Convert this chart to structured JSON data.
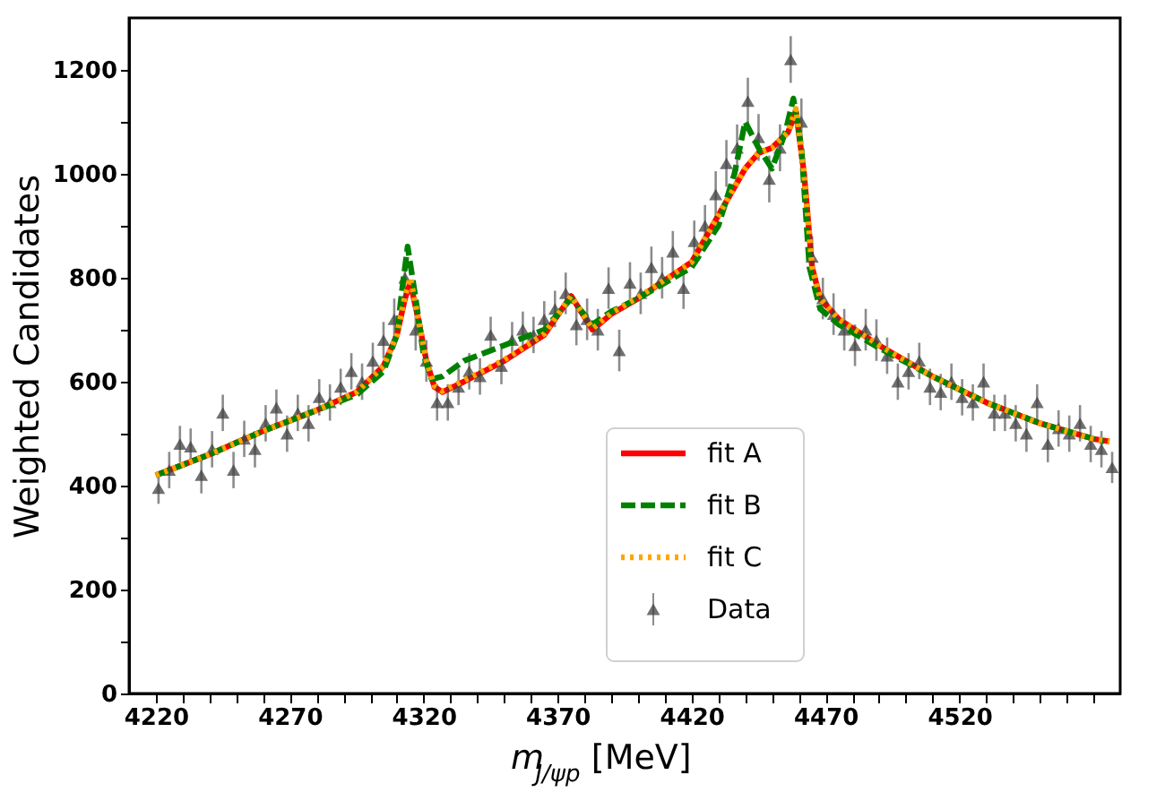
{
  "chart_data": {
    "type": "scatter",
    "xlabel": "m$_{J/ψp}$ [MeV]",
    "ylabel": "Weighted Candidates",
    "xlim": [
      4210,
      4580
    ],
    "ylim": [
      0,
      1300
    ],
    "xticks": [
      4220,
      {
        "value": 4230,
        "label": null
      },
      {
        "value": 4240,
        "label": null
      },
      {
        "value": 4250,
        "label": null
      },
      {
        "value": 4260,
        "label": null
      },
      4270,
      {
        "value": 4280,
        "label": null
      },
      {
        "value": 4290,
        "label": null
      },
      {
        "value": 4300,
        "label": null
      },
      {
        "value": 4310,
        "label": null
      },
      4320,
      {
        "value": 4330,
        "label": null
      },
      {
        "value": 4340,
        "label": null
      },
      {
        "value": 4350,
        "label": null
      },
      {
        "value": 4360,
        "label": null
      },
      4370,
      {
        "value": 4380,
        "label": null
      },
      {
        "value": 4390,
        "label": null
      },
      {
        "value": 4400,
        "label": null
      },
      {
        "value": 4410,
        "label": null
      },
      4420,
      {
        "value": 4430,
        "label": null
      },
      {
        "value": 4440,
        "label": null
      },
      {
        "value": 4450,
        "label": null
      },
      {
        "value": 4460,
        "label": null
      },
      4470,
      {
        "value": 4480,
        "label": null
      },
      {
        "value": 4490,
        "label": null
      },
      {
        "value": 4500,
        "label": null
      },
      {
        "value": 4510,
        "label": null
      },
      4520,
      {
        "value": 4530,
        "label": null
      },
      {
        "value": 4540,
        "label": null
      },
      {
        "value": 4550,
        "label": null
      },
      {
        "value": 4560,
        "label": null
      },
      {
        "value": 4570,
        "label": null
      }
    ],
    "yticks": [
      0,
      {
        "value": 100,
        "label": null
      },
      200,
      {
        "value": 300,
        "label": null
      },
      400,
      {
        "value": 500,
        "label": null
      },
      600,
      {
        "value": 700,
        "label": null
      },
      800,
      {
        "value": 900,
        "label": null
      },
      1000,
      {
        "value": 1100,
        "label": null
      },
      1200
    ],
    "grid": false,
    "legend": "bottom",
    "series": [
      {
        "name": "fit A",
        "type": "line",
        "color": "#ff0000",
        "line_style": "solid",
        "marker": "none",
        "x": [
          4220,
          4240,
          4260,
          4280,
          4295,
          4305,
          4310,
          4313,
          4315,
          4318,
          4321,
          4324,
          4327,
          4335,
          4350,
          4365,
          4375,
          4383,
          4390,
          4400,
          4420,
          4430,
          4440,
          4445,
          4450,
          4456,
          4459,
          4462,
          4465,
          4468,
          4475,
          4490,
          4510,
          4530,
          4550,
          4570,
          4576
        ],
        "values": [
          420,
          460,
          505,
          545,
          580,
          630,
          690,
          760,
          790,
          720,
          640,
          590,
          580,
          600,
          640,
          690,
          765,
          700,
          730,
          760,
          830,
          920,
          1010,
          1040,
          1050,
          1080,
          1120,
          1000,
          820,
          760,
          720,
          670,
          610,
          560,
          520,
          490,
          485
        ]
      },
      {
        "name": "fit B",
        "type": "line",
        "color": "#008000",
        "line_style": "dashed",
        "marker": "none",
        "x": [
          4220,
          4240,
          4260,
          4280,
          4295,
          4305,
          4310,
          4312,
          4314,
          4317,
          4320,
          4323,
          4327,
          4335,
          4350,
          4365,
          4375,
          4383,
          4390,
          4400,
          4420,
          4430,
          4436,
          4440,
          4445,
          4450,
          4455,
          4458,
          4461,
          4464,
          4468,
          4475,
          4490,
          4510,
          4530,
          4550,
          4570,
          4574
        ],
        "values": [
          420,
          460,
          505,
          545,
          575,
          620,
          690,
          780,
          860,
          760,
          650,
          605,
          610,
          640,
          670,
          700,
          760,
          710,
          735,
          760,
          820,
          900,
          1000,
          1100,
          1050,
          1010,
          1080,
          1145,
          1050,
          820,
          740,
          710,
          665,
          610,
          560,
          520,
          490,
          485
        ]
      },
      {
        "name": "fit C",
        "type": "line",
        "color": "#ffa500",
        "line_style": "dotted",
        "marker": "none",
        "x": [
          4220,
          4240,
          4260,
          4280,
          4295,
          4305,
          4310,
          4313,
          4315,
          4318,
          4321,
          4324,
          4327,
          4335,
          4350,
          4365,
          4375,
          4383,
          4390,
          4400,
          4420,
          4430,
          4440,
          4445,
          4450,
          4456,
          4459,
          4462,
          4465,
          4468,
          4475,
          4490,
          4510,
          4530,
          4550,
          4570,
          4576
        ],
        "values": [
          420,
          460,
          505,
          545,
          580,
          630,
          690,
          765,
          800,
          720,
          640,
          592,
          582,
          602,
          642,
          692,
          765,
          702,
          732,
          762,
          830,
          920,
          1010,
          1040,
          1050,
          1080,
          1125,
          1000,
          820,
          760,
          720,
          670,
          610,
          560,
          520,
          490,
          485
        ]
      },
      {
        "name": "Data",
        "type": "scatter",
        "color": "#404040",
        "marker": "triangle",
        "x": [
          4221,
          4225,
          4229,
          4233,
          4237,
          4241,
          4245,
          4249,
          4253,
          4257,
          4261,
          4265,
          4269,
          4273,
          4277,
          4281,
          4285,
          4289,
          4293,
          4297,
          4301,
          4305,
          4309,
          4313,
          4317,
          4321,
          4325,
          4329,
          4333,
          4337,
          4341,
          4345,
          4349,
          4353,
          4357,
          4361,
          4365,
          4369,
          4373,
          4377,
          4381,
          4385,
          4389,
          4393,
          4397,
          4401,
          4405,
          4409,
          4413,
          4417,
          4421,
          4425,
          4429,
          4433,
          4437,
          4441,
          4445,
          4449,
          4453,
          4457,
          4461,
          4465,
          4469,
          4473,
          4477,
          4481,
          4485,
          4489,
          4493,
          4497,
          4501,
          4505,
          4509,
          4513,
          4517,
          4521,
          4525,
          4529,
          4533,
          4537,
          4541,
          4545,
          4549,
          4553,
          4557,
          4561,
          4565,
          4569,
          4573,
          4577
        ],
        "values": [
          395,
          430,
          480,
          475,
          420,
          470,
          540,
          430,
          490,
          470,
          520,
          550,
          500,
          540,
          520,
          570,
          560,
          590,
          620,
          600,
          640,
          680,
          720,
          800,
          700,
          640,
          560,
          560,
          590,
          620,
          610,
          690,
          630,
          680,
          700,
          690,
          720,
          740,
          770,
          710,
          720,
          700,
          780,
          660,
          790,
          770,
          820,
          800,
          850,
          780,
          870,
          900,
          960,
          1020,
          1050,
          1140,
          1070,
          990,
          1050,
          1220,
          1100,
          840,
          760,
          730,
          700,
          670,
          700,
          680,
          650,
          600,
          620,
          640,
          590,
          580,
          600,
          570,
          560,
          600,
          540,
          540,
          520,
          500,
          560,
          480,
          510,
          500,
          520,
          480,
          470,
          435
        ],
        "errors": [
          30,
          35,
          35,
          35,
          35,
          35,
          35,
          35,
          35,
          35,
          35,
          35,
          35,
          35,
          35,
          35,
          35,
          35,
          35,
          35,
          35,
          35,
          40,
          40,
          40,
          40,
          35,
          35,
          35,
          35,
          35,
          35,
          35,
          35,
          35,
          35,
          35,
          35,
          40,
          40,
          40,
          40,
          40,
          40,
          40,
          40,
          40,
          40,
          40,
          40,
          40,
          40,
          45,
          45,
          45,
          45,
          45,
          45,
          45,
          45,
          45,
          40,
          40,
          40,
          40,
          40,
          40,
          40,
          35,
          35,
          35,
          35,
          35,
          35,
          35,
          35,
          35,
          35,
          35,
          35,
          35,
          35,
          35,
          35,
          35,
          35,
          35,
          35,
          35,
          30
        ]
      }
    ]
  }
}
